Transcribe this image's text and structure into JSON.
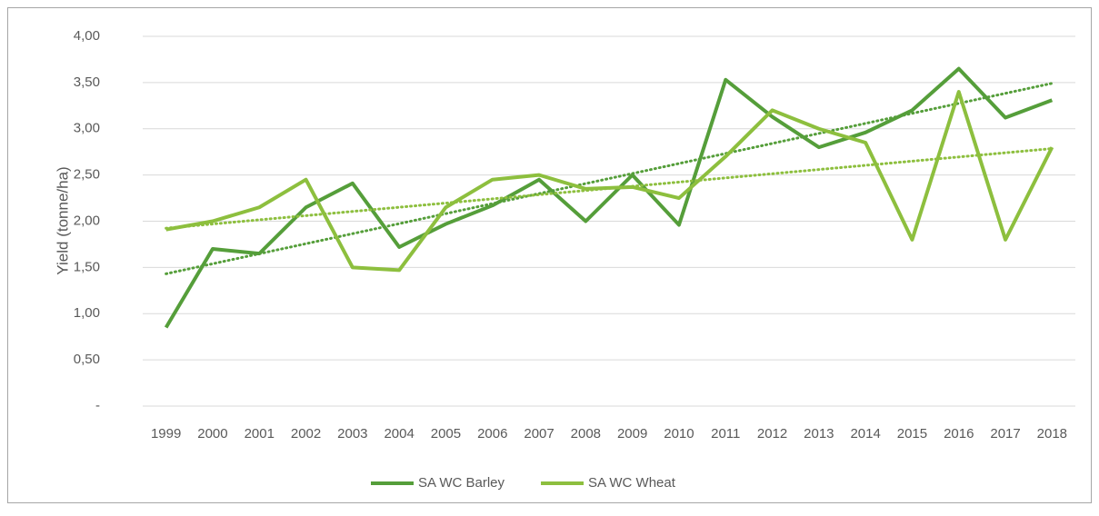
{
  "chart_data": {
    "type": "line",
    "y_label": "Yield (tonne/ha)",
    "categories": [
      "1999",
      "2000",
      "2001",
      "2002",
      "2003",
      "2004",
      "2005",
      "2006",
      "2007",
      "2008",
      "2009",
      "2010",
      "2011",
      "2012",
      "2013",
      "2014",
      "2015",
      "2016",
      "2017",
      "2018"
    ],
    "series": [
      {
        "name": "SA WC Barley",
        "color": "#559e3a",
        "values": [
          0.85,
          1.7,
          1.65,
          2.15,
          2.41,
          1.72,
          1.97,
          2.17,
          2.45,
          2.0,
          2.5,
          1.96,
          3.53,
          3.13,
          2.8,
          2.96,
          3.2,
          3.65,
          3.12,
          3.31
        ]
      },
      {
        "name": "SA WC Wheat",
        "color": "#8dbf3e",
        "values": [
          1.91,
          2.0,
          2.15,
          2.45,
          1.5,
          1.47,
          2.15,
          2.45,
          2.5,
          2.35,
          2.37,
          2.25,
          2.7,
          3.2,
          3.0,
          2.85,
          1.8,
          3.4,
          1.8,
          2.8
        ]
      }
    ],
    "ylim": [
      0,
      4
    ],
    "yticks": [
      {
        "value": 0,
        "label": "-"
      },
      {
        "value": 0.5,
        "label": "0,50"
      },
      {
        "value": 1,
        "label": "1,00"
      },
      {
        "value": 1.5,
        "label": "1,50"
      },
      {
        "value": 2,
        "label": "2,00"
      },
      {
        "value": 2.5,
        "label": "2,50"
      },
      {
        "value": 3,
        "label": "3,00"
      },
      {
        "value": 3.5,
        "label": "3,50"
      },
      {
        "value": 4,
        "label": "4,00"
      }
    ],
    "grid": true,
    "trendline": "linear",
    "legend": "bottom"
  }
}
